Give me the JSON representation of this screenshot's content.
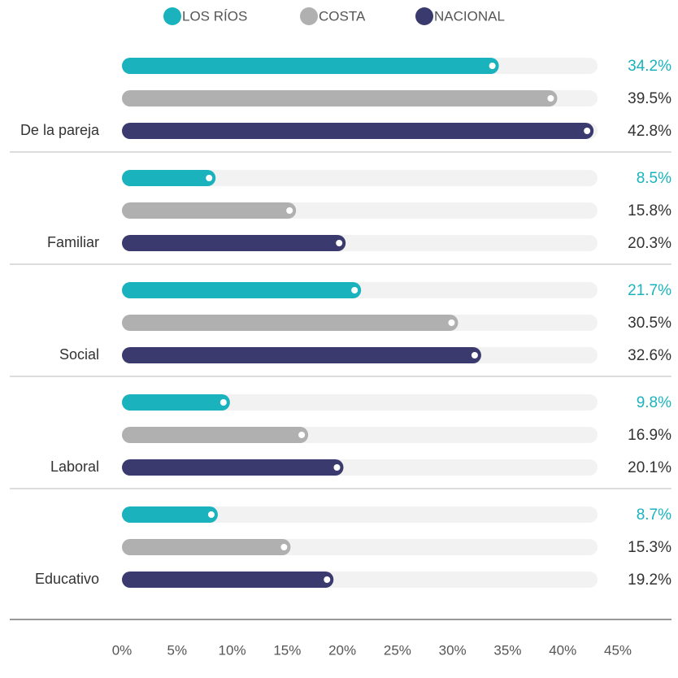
{
  "chart_data": {
    "type": "bar",
    "orientation": "horizontal",
    "categories": [
      "De la pareja",
      "Familiar",
      "Social",
      "Laboral",
      "Educativo"
    ],
    "series": [
      {
        "name": "LOS RÍOS",
        "color": "#1ab3bd",
        "values": [
          34.2,
          8.5,
          21.7,
          9.8,
          8.7
        ],
        "value_labels": [
          "34.2%",
          "8.5%",
          "21.7%",
          "9.8%",
          "8.7%"
        ]
      },
      {
        "name": "COSTA",
        "color": "#b0b0b0",
        "values": [
          39.5,
          15.8,
          30.5,
          16.9,
          15.3
        ],
        "value_labels": [
          "39.5%",
          "15.8%",
          "30.5%",
          "16.9%",
          "15.3%"
        ]
      },
      {
        "name": "NACIONAL",
        "color": "#3a3a6e",
        "values": [
          42.8,
          20.3,
          32.6,
          20.1,
          19.2
        ],
        "value_labels": [
          "42.8%",
          "20.3%",
          "32.6%",
          "20.1%",
          "19.2%"
        ]
      }
    ],
    "xlim": [
      0,
      45
    ],
    "xticks": [
      {
        "value": 0,
        "label": "0%"
      },
      {
        "value": 5,
        "label": "5%"
      },
      {
        "value": 10,
        "label": "10%"
      },
      {
        "value": 15,
        "label": "15%"
      },
      {
        "value": 20,
        "label": "20%"
      },
      {
        "value": 25,
        "label": "25%"
      },
      {
        "value": 30,
        "label": "30%"
      },
      {
        "value": 35,
        "label": "35%"
      },
      {
        "value": 40,
        "label": "40%"
      },
      {
        "value": 45,
        "label": "45%"
      }
    ],
    "legend": "top"
  }
}
